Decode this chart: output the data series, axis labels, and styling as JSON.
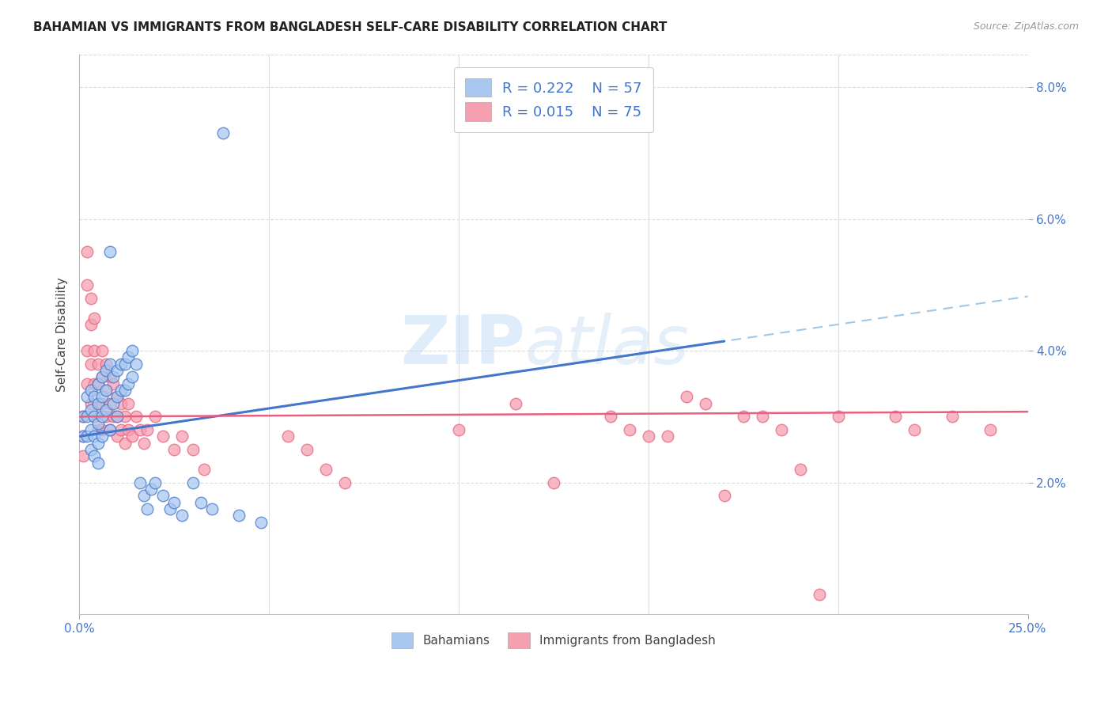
{
  "title": "BAHAMIAN VS IMMIGRANTS FROM BANGLADESH SELF-CARE DISABILITY CORRELATION CHART",
  "source": "Source: ZipAtlas.com",
  "ylabel": "Self-Care Disability",
  "xlim": [
    0.0,
    0.25
  ],
  "ylim": [
    0.0,
    0.085
  ],
  "xticks": [
    0.0,
    0.25
  ],
  "xticklabels": [
    "0.0%",
    "25.0%"
  ],
  "ytick_positions": [
    0.02,
    0.04,
    0.06,
    0.08
  ],
  "yticklabels": [
    "2.0%",
    "4.0%",
    "6.0%",
    "8.0%"
  ],
  "legend1_r": "0.222",
  "legend1_n": "57",
  "legend2_r": "0.015",
  "legend2_n": "75",
  "color_blue": "#a8c8f0",
  "color_pink": "#f5a0b0",
  "line_blue": "#4477cc",
  "line_pink": "#e86080",
  "line_dashed_color": "#a0c8e8",
  "watermark_zip": "ZIP",
  "watermark_atlas": "atlas",
  "bahamian_x": [
    0.001,
    0.001,
    0.002,
    0.002,
    0.002,
    0.003,
    0.003,
    0.003,
    0.003,
    0.004,
    0.004,
    0.004,
    0.004,
    0.005,
    0.005,
    0.005,
    0.005,
    0.005,
    0.006,
    0.006,
    0.006,
    0.006,
    0.007,
    0.007,
    0.007,
    0.008,
    0.008,
    0.008,
    0.009,
    0.009,
    0.01,
    0.01,
    0.01,
    0.011,
    0.011,
    0.012,
    0.012,
    0.013,
    0.013,
    0.014,
    0.014,
    0.015,
    0.016,
    0.017,
    0.018,
    0.019,
    0.02,
    0.022,
    0.024,
    0.025,
    0.027,
    0.03,
    0.032,
    0.035,
    0.038,
    0.042,
    0.048
  ],
  "bahamian_y": [
    0.03,
    0.027,
    0.033,
    0.03,
    0.027,
    0.034,
    0.031,
    0.028,
    0.025,
    0.033,
    0.03,
    0.027,
    0.024,
    0.035,
    0.032,
    0.029,
    0.026,
    0.023,
    0.036,
    0.033,
    0.03,
    0.027,
    0.037,
    0.034,
    0.031,
    0.038,
    0.055,
    0.028,
    0.036,
    0.032,
    0.037,
    0.033,
    0.03,
    0.038,
    0.034,
    0.038,
    0.034,
    0.039,
    0.035,
    0.04,
    0.036,
    0.038,
    0.02,
    0.018,
    0.016,
    0.019,
    0.02,
    0.018,
    0.016,
    0.017,
    0.015,
    0.02,
    0.017,
    0.016,
    0.073,
    0.015,
    0.014
  ],
  "bangladesh_x": [
    0.001,
    0.001,
    0.001,
    0.002,
    0.002,
    0.002,
    0.002,
    0.003,
    0.003,
    0.003,
    0.003,
    0.004,
    0.004,
    0.004,
    0.004,
    0.005,
    0.005,
    0.005,
    0.005,
    0.006,
    0.006,
    0.006,
    0.006,
    0.007,
    0.007,
    0.007,
    0.008,
    0.008,
    0.008,
    0.009,
    0.009,
    0.01,
    0.01,
    0.01,
    0.011,
    0.011,
    0.012,
    0.012,
    0.013,
    0.013,
    0.014,
    0.015,
    0.016,
    0.017,
    0.018,
    0.02,
    0.022,
    0.025,
    0.027,
    0.03,
    0.033,
    0.055,
    0.06,
    0.065,
    0.07,
    0.1,
    0.115,
    0.125,
    0.14,
    0.145,
    0.155,
    0.165,
    0.175,
    0.185,
    0.195,
    0.215,
    0.22,
    0.23,
    0.24,
    0.15,
    0.16,
    0.17,
    0.18,
    0.19,
    0.2
  ],
  "bangladesh_y": [
    0.03,
    0.027,
    0.024,
    0.055,
    0.05,
    0.04,
    0.035,
    0.048,
    0.044,
    0.038,
    0.032,
    0.045,
    0.04,
    0.035,
    0.03,
    0.038,
    0.035,
    0.032,
    0.028,
    0.04,
    0.036,
    0.032,
    0.028,
    0.038,
    0.034,
    0.03,
    0.036,
    0.032,
    0.028,
    0.035,
    0.03,
    0.033,
    0.03,
    0.027,
    0.032,
    0.028,
    0.03,
    0.026,
    0.032,
    0.028,
    0.027,
    0.03,
    0.028,
    0.026,
    0.028,
    0.03,
    0.027,
    0.025,
    0.027,
    0.025,
    0.022,
    0.027,
    0.025,
    0.022,
    0.02,
    0.028,
    0.032,
    0.02,
    0.03,
    0.028,
    0.027,
    0.032,
    0.03,
    0.028,
    0.003,
    0.03,
    0.028,
    0.03,
    0.028,
    0.027,
    0.033,
    0.018,
    0.03,
    0.022,
    0.03
  ],
  "blue_line_x": [
    0.0,
    0.17
  ],
  "blue_line_y_intercept": 0.027,
  "blue_line_slope": 0.085,
  "pink_line_x": [
    0.0,
    0.25
  ],
  "pink_line_y_intercept": 0.03,
  "pink_line_slope": 0.003,
  "dashed_line_x": [
    0.0,
    0.25
  ],
  "dashed_line_y_intercept": 0.027,
  "dashed_line_slope": 0.085,
  "grid_color": "#dddddd",
  "grid_yticks": [
    0.02,
    0.04,
    0.06,
    0.08
  ]
}
